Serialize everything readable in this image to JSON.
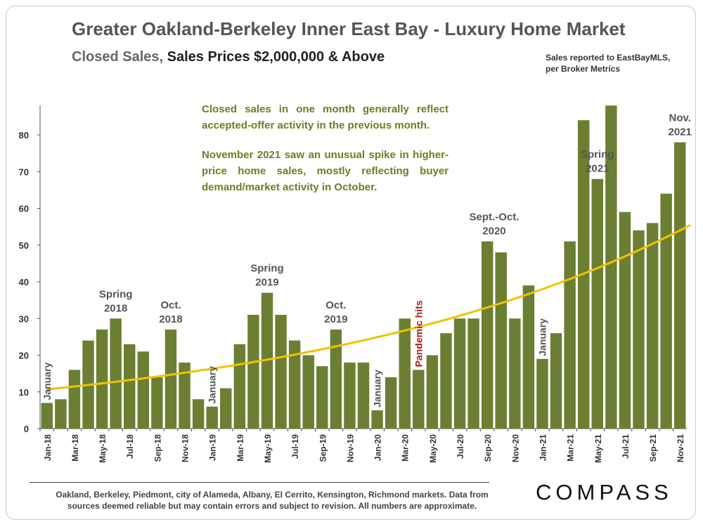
{
  "header": {
    "title": "Greater Oakland-Berkeley Inner East Bay - Luxury Home Market",
    "subtitle_prefix": "Closed Sales,",
    "subtitle_main": "Sales Prices $2,000,000 & Above",
    "source_line1": "Sales reported to EastBayMLS,",
    "source_line2": "per Broker Metrics"
  },
  "notes": {
    "note1": "Closed sales in one month generally reflect accepted-offer activity in the previous month.",
    "note2": "November 2021 saw an unusual spike in higher-price home sales, mostly reflecting buyer demand/market activity in October."
  },
  "footer": {
    "line1": "Oakland, Berkeley, Piedmont, city of Alameda, Albany, El Cerrito, Kensington, Richmond markets. Data from",
    "line2": "sources deemed reliable but may contain errors and subject to revision. All numbers are approximate."
  },
  "brand": "COMPASS",
  "colors": {
    "bar": "#6b7f33",
    "trend": "#f2c200",
    "axis_text": "#333333",
    "label": "#555555",
    "pandemic": "#b01919"
  },
  "chart_data": {
    "type": "bar",
    "title": "Greater Oakland-Berkeley Inner East Bay - Luxury Home Market",
    "subtitle": "Closed Sales, Sales Prices $2,000,000 & Above",
    "xlabel": "",
    "ylabel": "",
    "ylim": [
      0,
      88
    ],
    "yticks": [
      0,
      10,
      20,
      30,
      40,
      50,
      60,
      70,
      80
    ],
    "grid": false,
    "categories": [
      "Jan-18",
      "Feb-18",
      "Mar-18",
      "Apr-18",
      "May-18",
      "Jun-18",
      "Jul-18",
      "Aug-18",
      "Sep-18",
      "Oct-18",
      "Nov-18",
      "Dec-18",
      "Jan-19",
      "Feb-19",
      "Mar-19",
      "Apr-19",
      "May-19",
      "Jun-19",
      "Jul-19",
      "Aug-19",
      "Sep-19",
      "Oct-19",
      "Nov-19",
      "Dec-19",
      "Jan-20",
      "Feb-20",
      "Mar-20",
      "Apr-20",
      "May-20",
      "Jun-20",
      "Jul-20",
      "Aug-20",
      "Sep-20",
      "Oct-20",
      "Nov-20",
      "Dec-20",
      "Jan-21",
      "Feb-21",
      "Mar-21",
      "Apr-21",
      "May-21",
      "Jun-21",
      "Jul-21",
      "Aug-21",
      "Sep-21",
      "Oct-21",
      "Nov-21"
    ],
    "visible_tick_labels": [
      "Jan-18",
      "Mar-18",
      "May-18",
      "Jul-18",
      "Sep-18",
      "Nov-18",
      "Jan-19",
      "Mar-19",
      "May-19",
      "Jul-19",
      "Sep-19",
      "Nov-19",
      "Jan-20",
      "Mar-20",
      "May-20",
      "Jul-20",
      "Sep-20",
      "Nov-20",
      "Jan-21",
      "Mar-21",
      "May-21",
      "Jul-21",
      "Sep-21",
      "Nov-21"
    ],
    "values": [
      7,
      8,
      16,
      24,
      27,
      30,
      23,
      21,
      14,
      27,
      18,
      8,
      6,
      11,
      23,
      31,
      37,
      31,
      24,
      20,
      17,
      27,
      18,
      18,
      5,
      14,
      30,
      16,
      20,
      26,
      30,
      30,
      51,
      48,
      30,
      39,
      19,
      26,
      51,
      84,
      68,
      88,
      59,
      54,
      56,
      64,
      78
    ],
    "trendline": {
      "type": "exponential",
      "start_value": 10.7,
      "end_value": 54
    },
    "annotations": [
      {
        "text": [
          "Spring",
          "2018"
        ],
        "index": 5,
        "style": "label"
      },
      {
        "text": [
          "Oct.",
          "2018"
        ],
        "index": 9,
        "style": "label"
      },
      {
        "text": [
          "Spring",
          "2019"
        ],
        "index": 16,
        "style": "label"
      },
      {
        "text": [
          "Oct.",
          "2019"
        ],
        "index": 21,
        "style": "label"
      },
      {
        "text": [
          "Sept.-Oct.",
          "2020"
        ],
        "index": 32.5,
        "style": "label"
      },
      {
        "text": [
          "Spring",
          "2021"
        ],
        "index": 40,
        "style": "label"
      },
      {
        "text": [
          "Nov.",
          "2021"
        ],
        "index": 46,
        "style": "label"
      },
      {
        "text": [
          "January"
        ],
        "index": 0,
        "style": "vertical"
      },
      {
        "text": [
          "January"
        ],
        "index": 12,
        "style": "vertical"
      },
      {
        "text": [
          "January"
        ],
        "index": 24,
        "style": "vertical"
      },
      {
        "text": [
          "January"
        ],
        "index": 36,
        "style": "vertical"
      },
      {
        "text": [
          "Pandemic hits"
        ],
        "index": 27,
        "style": "vertical-red"
      }
    ]
  }
}
